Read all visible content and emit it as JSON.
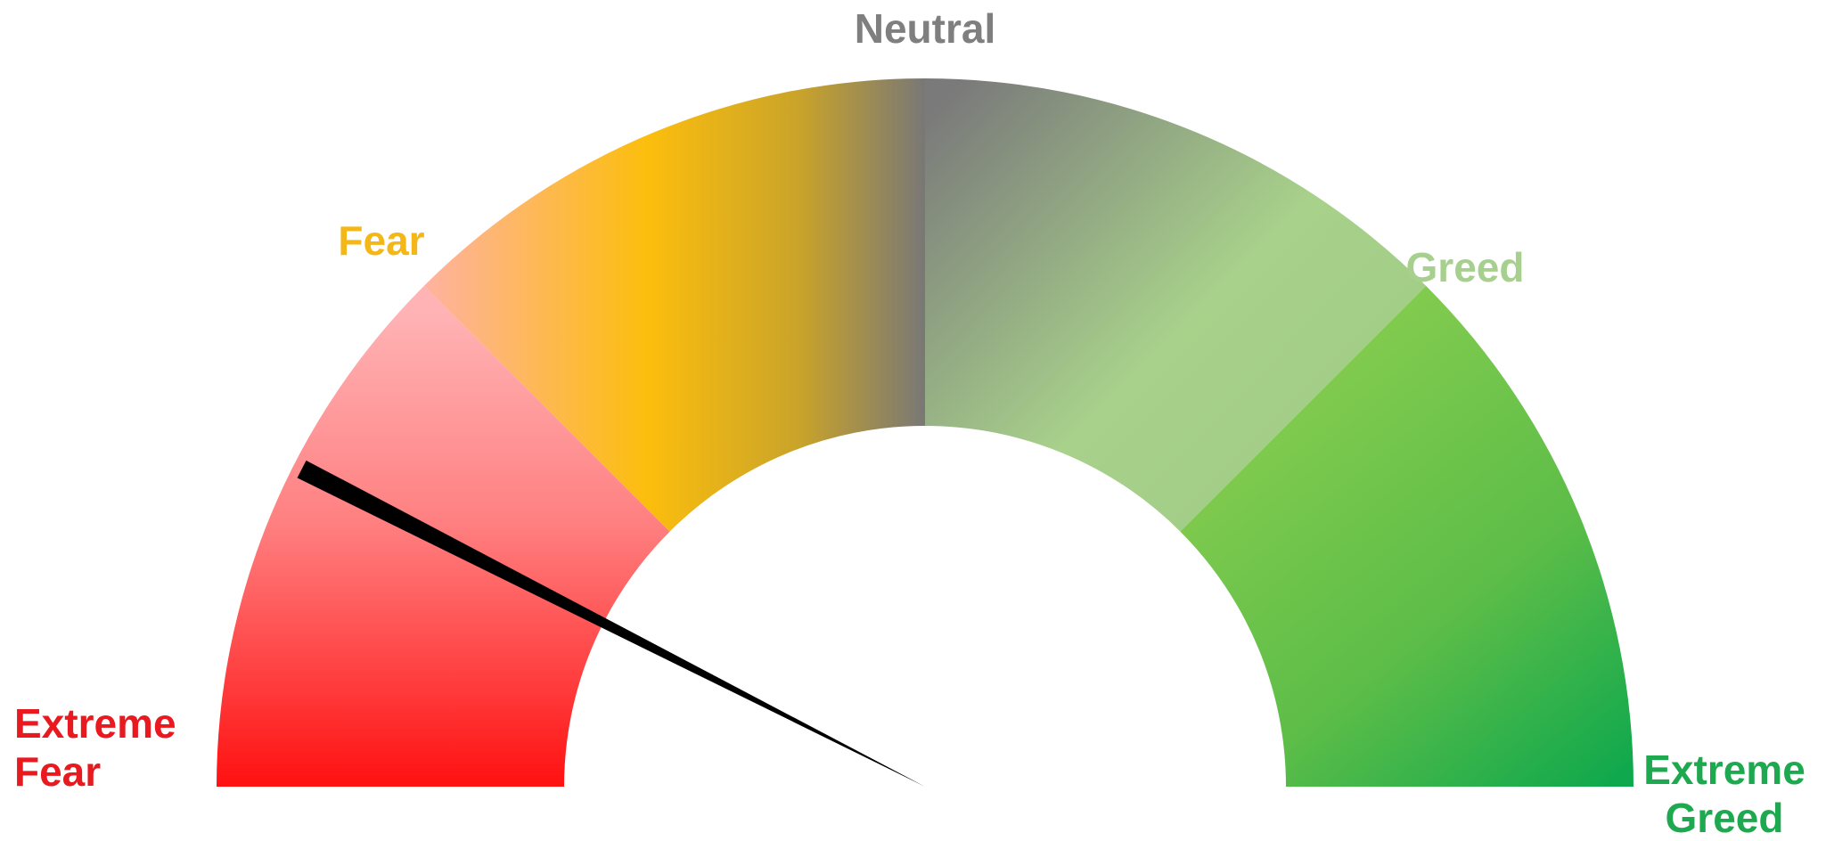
{
  "chart_data": {
    "type": "gauge",
    "value": 15,
    "range": [
      0,
      100
    ],
    "segments": [
      {
        "name": "Extreme Fear",
        "from": 0,
        "to": 25,
        "label_color": "#e8191f"
      },
      {
        "name": "Fear",
        "from": 25,
        "to": 50,
        "label_color": "#f3b817"
      },
      {
        "name": "Greed",
        "from": 50,
        "to": 75,
        "label_color": "#a7d08f"
      },
      {
        "name": "Extreme Greed",
        "from": 75,
        "to": 100,
        "label_color": "#1ea84f"
      }
    ],
    "labels": {
      "extreme_fear": [
        "Extreme",
        "Fear"
      ],
      "fear": "Fear",
      "neutral": "Neutral",
      "greed": "Greed",
      "extreme_greed": [
        "Extreme",
        "Greed"
      ]
    },
    "neutral_label_color": "#7f7f7f",
    "needle_color": "#000000"
  }
}
